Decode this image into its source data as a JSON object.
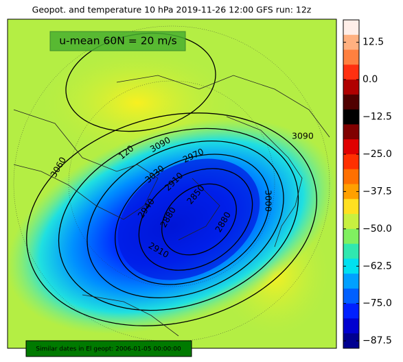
{
  "title": "Geopot. and temperature 10 hPa 2019-11-26 12:00 GFS run: 12z",
  "annotation": "u-mean 60N = 20 m/s",
  "footer": "Similar dates in El geopt: 2006-01-05 00:00:00",
  "contour_labels": [
    "3090",
    "3090",
    "2970",
    "3030",
    "2910",
    "2940",
    "2850",
    "2880",
    "2880",
    "2910",
    "3000",
    "3060",
    "120"
  ],
  "colorbar": {
    "lim": [
      -90,
      20
    ],
    "ticks": [
      12.5,
      {
        "value": 0,
        "label": "0.0"
      },
      {
        "value": -12.5,
        "label": "−12.5"
      },
      {
        "value": -25,
        "label": "−25.0"
      },
      {
        "value": -37.5,
        "label": "−37.5"
      },
      {
        "value": -50,
        "label": "−50.0"
      },
      {
        "value": -62.5,
        "label": "−62.5"
      },
      {
        "value": -75,
        "label": "−75.0"
      },
      {
        "value": -87.5,
        "label": "−87.5"
      }
    ],
    "colors": [
      "#ffeee8",
      "#ffb080",
      "#ff8040",
      "#ff3010",
      "#b00000",
      "#500000",
      "#000000",
      "#800000",
      "#e00000",
      "#ff3000",
      "#ff7000",
      "#ffa000",
      "#ffe020",
      "#c8f040",
      "#80f060",
      "#30e8b0",
      "#00e0f0",
      "#00a0ff",
      "#0060ff",
      "#0020ff",
      "#0000d0",
      "#000090"
    ]
  }
}
